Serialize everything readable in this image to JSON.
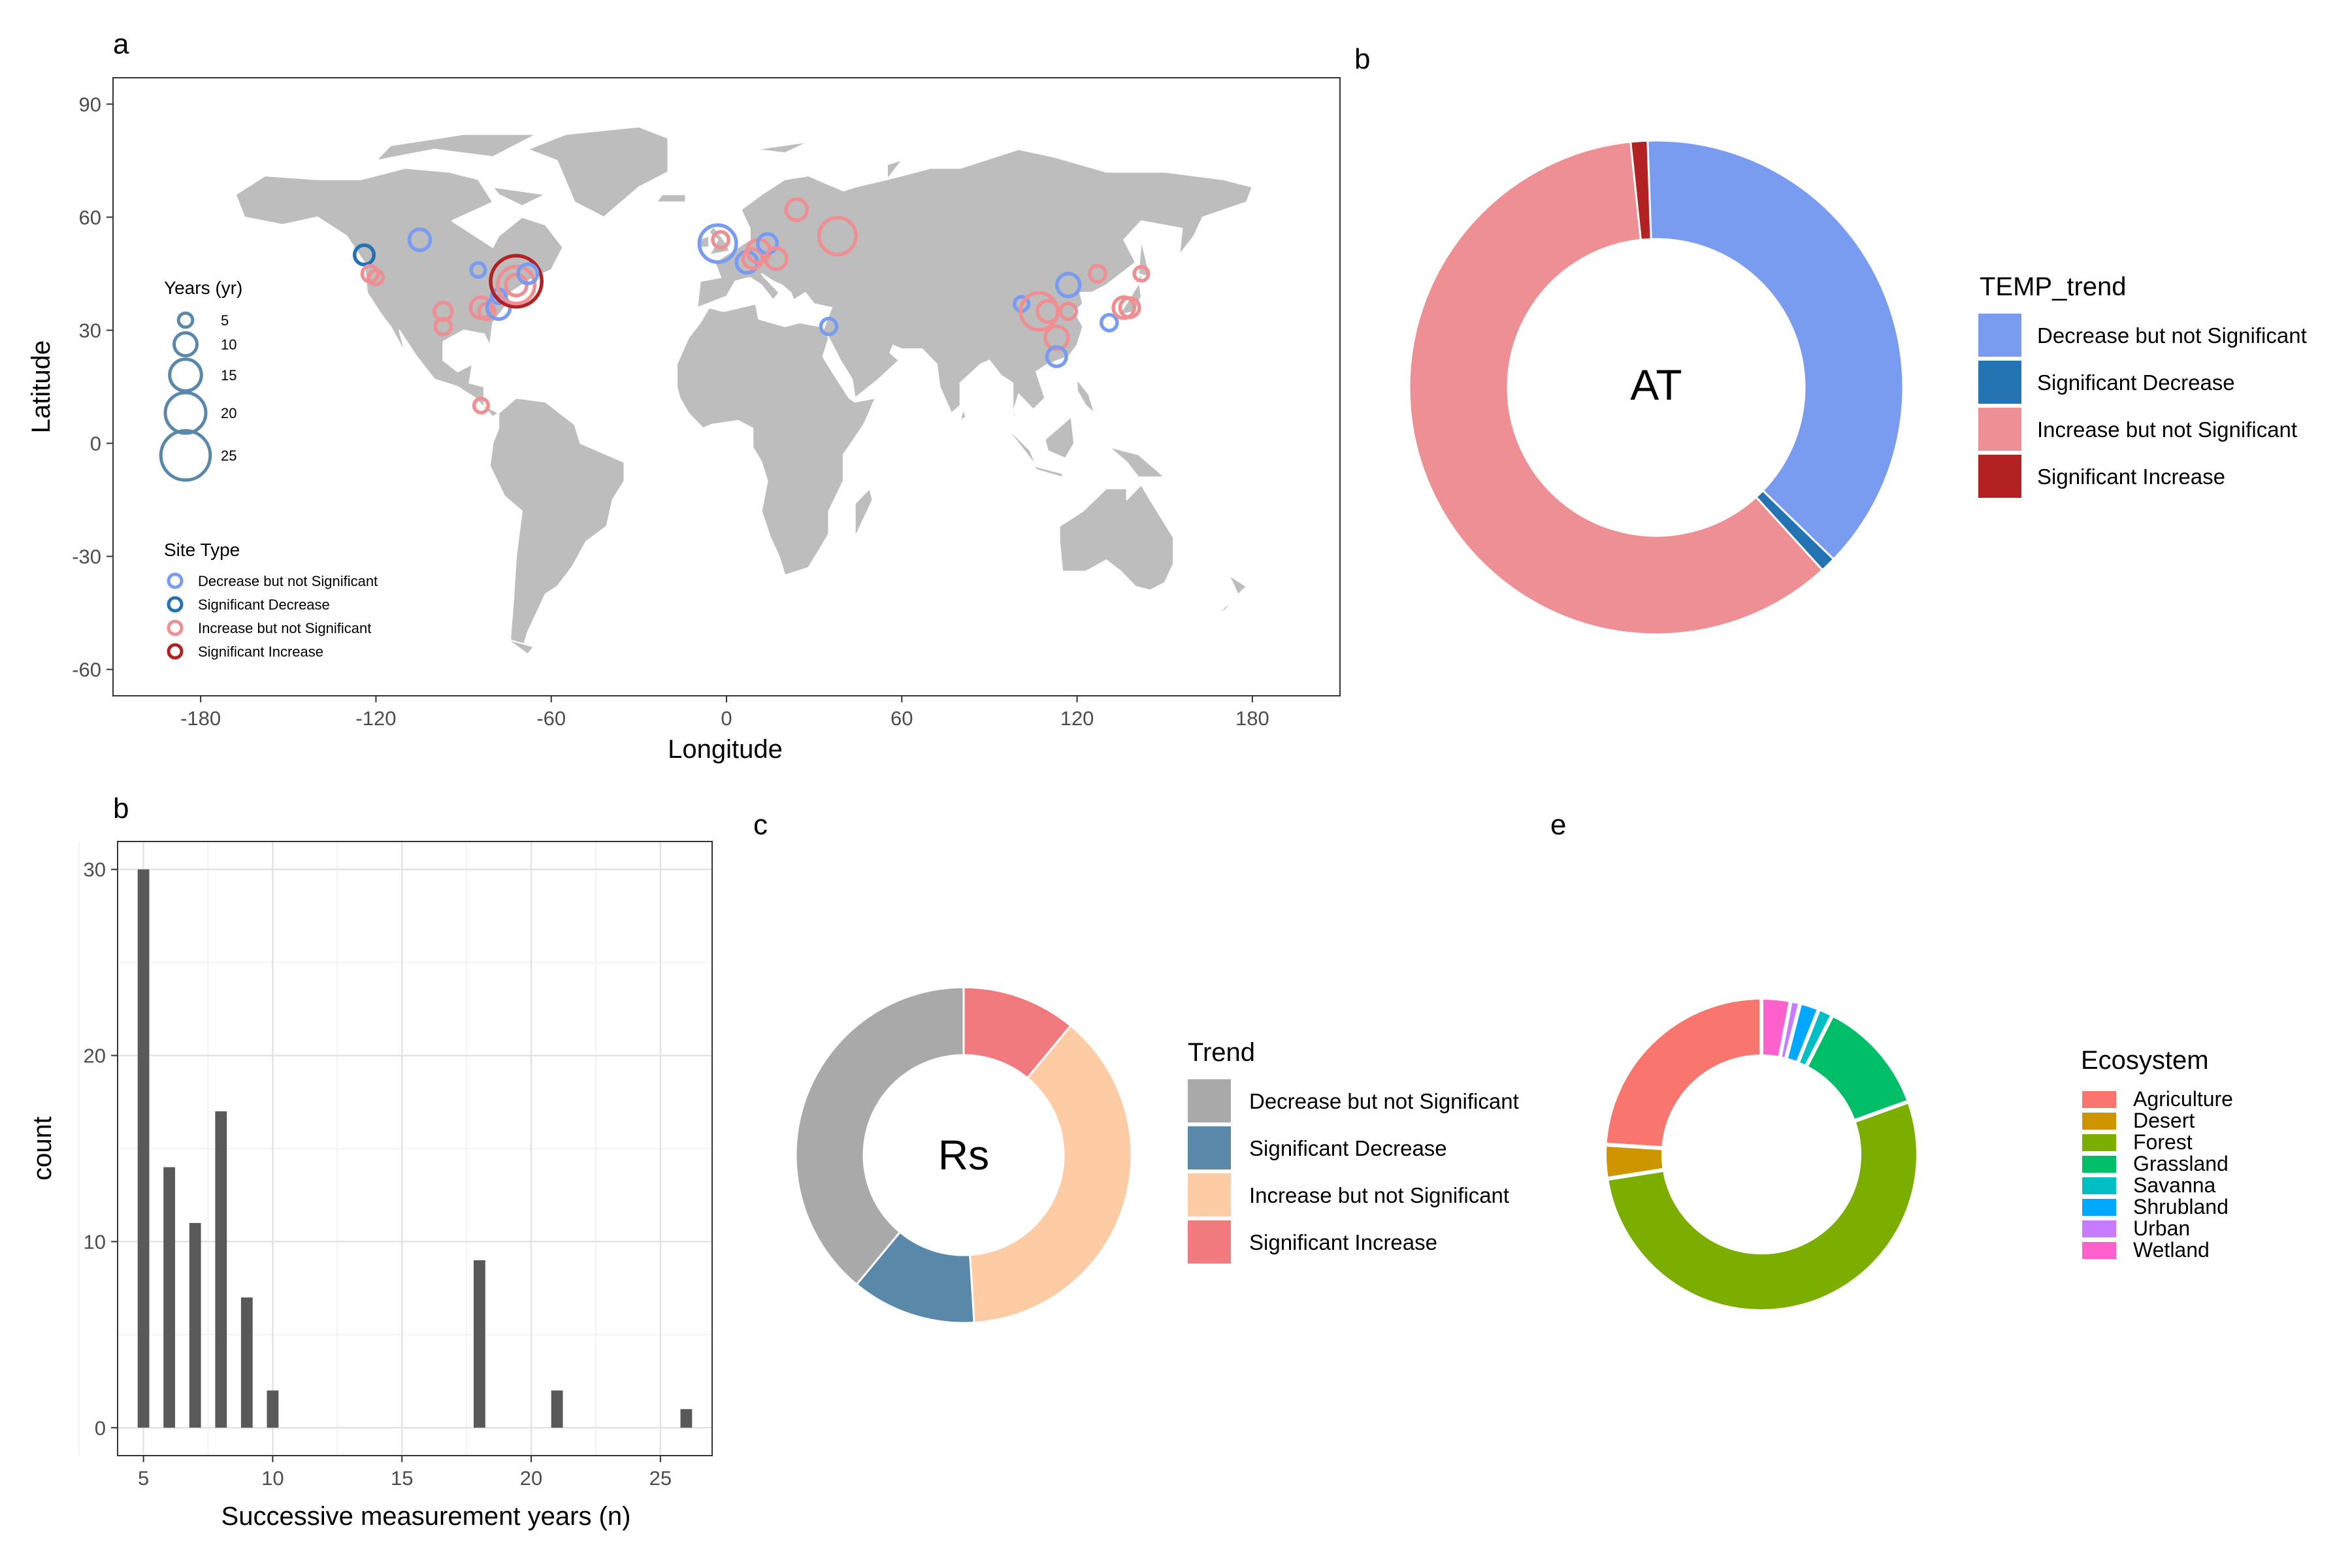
{
  "colors": {
    "decrease_ns": "#7A9CF0",
    "sig_decrease": "#2474B4",
    "increase_ns": "#EE8F93",
    "sig_increase": "#B22222",
    "land": "#BDBDBD",
    "bar": "#595959",
    "rs_decrease_ns": "#A9A9A9",
    "rs_sig_decrease": "#5A88A8",
    "rs_increase_ns": "#FDCBA4",
    "rs_sig_increase": "#F07A7E"
  },
  "chart_data": [
    {
      "panel": "a",
      "type": "scatter",
      "xlabel": "Longitude",
      "ylabel": "Latitude",
      "xlim": [
        -210,
        210
      ],
      "ylim": [
        -67,
        97
      ],
      "xticks": [
        -180,
        -120,
        -60,
        0,
        60,
        120,
        180
      ],
      "yticks": [
        90,
        60,
        30,
        0,
        -30,
        -60
      ],
      "size_legend": {
        "title": "Years (yr)",
        "sizes": [
          5,
          10,
          15,
          20,
          25
        ]
      },
      "type_legend": {
        "title": "Site Type",
        "entries": [
          "Decrease but not Significant",
          "Significant Decrease",
          "Increase but not Significant",
          "Significant Increase"
        ]
      },
      "points": [
        {
          "lon": -124,
          "lat": 50,
          "years": 8,
          "trend": "Significant Decrease"
        },
        {
          "lon": -105,
          "lat": 54,
          "years": 9,
          "trend": "Decrease but not Significant"
        },
        {
          "lon": -122,
          "lat": 45,
          "years": 6,
          "trend": "Increase but not Significant"
        },
        {
          "lon": -120,
          "lat": 44,
          "years": 5,
          "trend": "Increase but not Significant"
        },
        {
          "lon": -97,
          "lat": 35,
          "years": 7,
          "trend": "Increase but not Significant"
        },
        {
          "lon": -97,
          "lat": 31,
          "years": 6,
          "trend": "Increase but not Significant"
        },
        {
          "lon": -85,
          "lat": 46,
          "years": 5,
          "trend": "Decrease but not Significant"
        },
        {
          "lon": -84,
          "lat": 36,
          "years": 9,
          "trend": "Increase but not Significant"
        },
        {
          "lon": -82,
          "lat": 35,
          "years": 6,
          "trend": "Increase but not Significant"
        },
        {
          "lon": -78,
          "lat": 36,
          "years": 10,
          "trend": "Decrease but not Significant"
        },
        {
          "lon": -78,
          "lat": 39,
          "years": 5,
          "trend": "Decrease but not Significant"
        },
        {
          "lon": -72,
          "lat": 43,
          "years": 26,
          "trend": "Significant Increase"
        },
        {
          "lon": -72,
          "lat": 42,
          "years": 18,
          "trend": "Increase but not Significant"
        },
        {
          "lon": -72,
          "lat": 42,
          "years": 9,
          "trend": "Increase but not Significant"
        },
        {
          "lon": -68,
          "lat": 45,
          "years": 8,
          "trend": "Decrease but not Significant"
        },
        {
          "lon": -84,
          "lat": 10,
          "years": 5,
          "trend": "Increase but not Significant"
        },
        {
          "lon": -3,
          "lat": 53,
          "years": 18,
          "trend": "Decrease but not Significant"
        },
        {
          "lon": -2,
          "lat": 54,
          "years": 6,
          "trend": "Increase but not Significant"
        },
        {
          "lon": 7,
          "lat": 48,
          "years": 9,
          "trend": "Decrease but not Significant"
        },
        {
          "lon": 9,
          "lat": 49,
          "years": 8,
          "trend": "Increase but not Significant"
        },
        {
          "lon": 11,
          "lat": 51,
          "years": 10,
          "trend": "Increase but not Significant"
        },
        {
          "lon": 14,
          "lat": 53,
          "years": 8,
          "trend": "Decrease but not Significant"
        },
        {
          "lon": 17,
          "lat": 49,
          "years": 9,
          "trend": "Increase but not Significant"
        },
        {
          "lon": 24,
          "lat": 62,
          "years": 9,
          "trend": "Increase but not Significant"
        },
        {
          "lon": 38,
          "lat": 55,
          "years": 18,
          "trend": "Increase but not Significant"
        },
        {
          "lon": 35,
          "lat": 31,
          "years": 6,
          "trend": "Decrease but not Significant"
        },
        {
          "lon": 101,
          "lat": 37,
          "years": 5,
          "trend": "Decrease but not Significant"
        },
        {
          "lon": 107,
          "lat": 35,
          "years": 18,
          "trend": "Increase but not Significant"
        },
        {
          "lon": 110,
          "lat": 35,
          "years": 9,
          "trend": "Increase but not Significant"
        },
        {
          "lon": 113,
          "lat": 28,
          "years": 10,
          "trend": "Increase but not Significant"
        },
        {
          "lon": 113,
          "lat": 23,
          "years": 8,
          "trend": "Decrease but not Significant"
        },
        {
          "lon": 117,
          "lat": 42,
          "years": 10,
          "trend": "Decrease but not Significant"
        },
        {
          "lon": 117,
          "lat": 35,
          "years": 6,
          "trend": "Increase but not Significant"
        },
        {
          "lon": 127,
          "lat": 45,
          "years": 6,
          "trend": "Increase but not Significant"
        },
        {
          "lon": 131,
          "lat": 32,
          "years": 6,
          "trend": "Decrease but not Significant"
        },
        {
          "lon": 136,
          "lat": 36,
          "years": 9,
          "trend": "Increase but not Significant"
        },
        {
          "lon": 138,
          "lat": 36,
          "years": 8,
          "trend": "Increase but not Significant"
        },
        {
          "lon": 142,
          "lat": 45,
          "years": 5,
          "trend": "Increase but not Significant"
        }
      ]
    },
    {
      "panel": "b",
      "type": "pie",
      "center_label": "AT",
      "legend_title": "TEMP_trend",
      "categories": [
        "Decrease but not Significant",
        "Significant Decrease",
        "Increase but not Significant",
        "Significant Increase"
      ],
      "values": [
        37.8,
        1.0,
        60.1,
        1.1
      ]
    },
    {
      "panel": "b",
      "type": "bar",
      "xlabel": "Successive measurement years (n)",
      "ylabel": "count",
      "xlim": [
        4,
        27
      ],
      "ylim": [
        -1.5,
        31.5
      ],
      "xticks": [
        5,
        10,
        15,
        20,
        25
      ],
      "yticks": [
        0,
        10,
        20,
        30
      ],
      "x": [
        5,
        6,
        7,
        8,
        9,
        10,
        18,
        21,
        26
      ],
      "values": [
        30,
        14,
        11,
        17,
        7,
        2,
        9,
        2,
        1
      ]
    },
    {
      "panel": "c",
      "type": "pie",
      "center_label": "Rs",
      "legend_title": "Trend",
      "categories": [
        "Decrease but not Significant",
        "Significant Decrease",
        "Increase but not Significant",
        "Significant Increase"
      ],
      "values": [
        39,
        12,
        38,
        11
      ]
    },
    {
      "panel": "e",
      "type": "pie",
      "legend_title": "Ecosystem",
      "categories": [
        "Agriculture",
        "Desert",
        "Forest",
        "Grassland",
        "Savanna",
        "Shrubland",
        "Urban",
        "Wetland"
      ],
      "colors": [
        "#F8766D",
        "#CD9600",
        "#7CAE00",
        "#00BE67",
        "#00BFC4",
        "#00A9FF",
        "#C77CFF",
        "#FF61CC"
      ],
      "values": [
        24,
        3.5,
        53,
        12,
        1.5,
        2,
        1,
        3
      ]
    }
  ]
}
